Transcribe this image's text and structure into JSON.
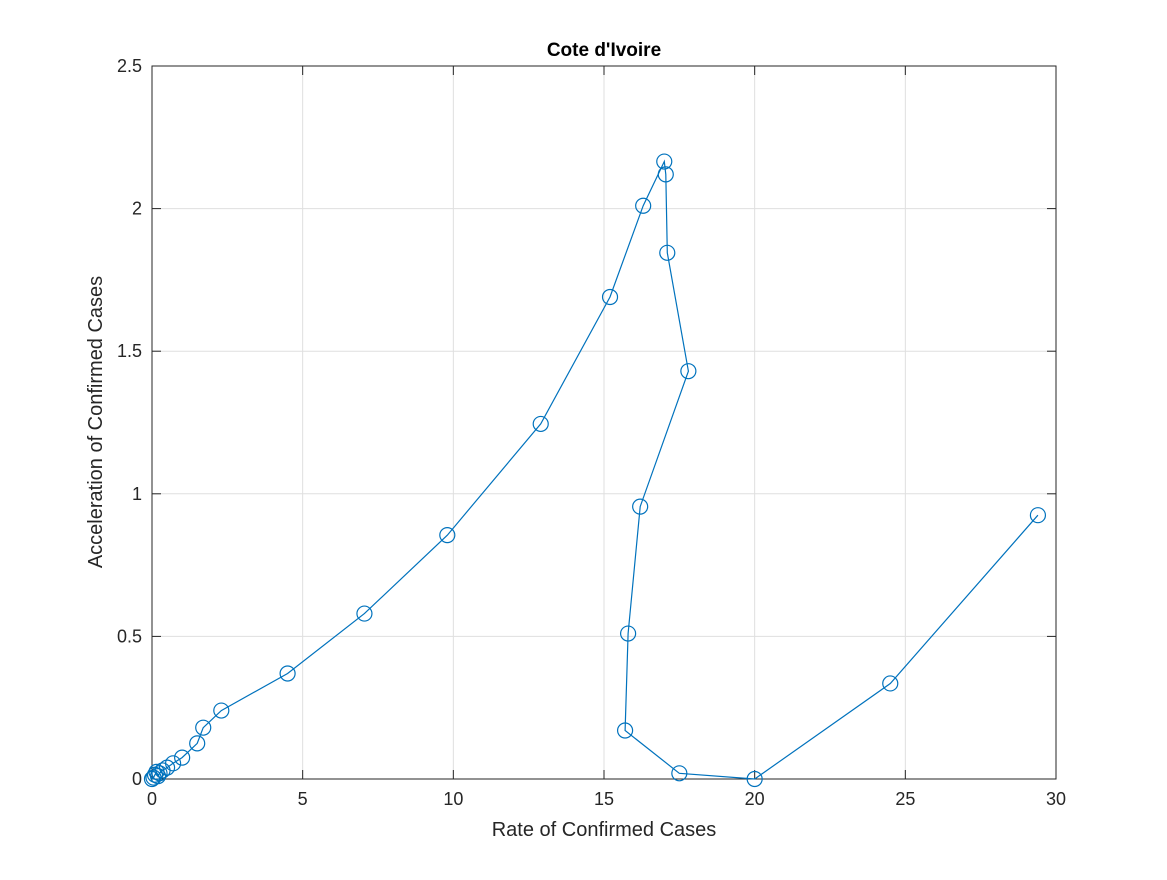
{
  "chart_data": {
    "type": "line",
    "title": "Cote d'Ivoire",
    "xlabel": "Rate of Confirmed Cases",
    "ylabel": "Acceleration of Confirmed Cases",
    "xlim": [
      0,
      30
    ],
    "ylim": [
      0,
      2.5
    ],
    "xticks": [
      0,
      5,
      10,
      15,
      20,
      25,
      30
    ],
    "yticks": [
      0,
      0.5,
      1,
      1.5,
      2,
      2.5
    ],
    "xtick_labels": [
      "0",
      "5",
      "10",
      "15",
      "20",
      "25",
      "30"
    ],
    "ytick_labels": [
      "0",
      "0.5",
      "1",
      "1.5",
      "2",
      "2.5"
    ],
    "grid": true,
    "marker": "circle",
    "color": "#0072BD",
    "series": [
      {
        "x": [
          0.0,
          0.05,
          0.1,
          0.15,
          0.2,
          0.25,
          0.35,
          0.5,
          0.7,
          1.0,
          1.5,
          1.7,
          2.3,
          4.5,
          7.05,
          9.8,
          12.9,
          15.2,
          16.3,
          17.0,
          17.05,
          17.1,
          17.8,
          16.2,
          15.8,
          15.7,
          17.5,
          20.0,
          24.5,
          29.4
        ],
        "y": [
          0.0,
          0.005,
          0.015,
          0.025,
          0.01,
          0.02,
          0.03,
          0.04,
          0.055,
          0.075,
          0.125,
          0.18,
          0.24,
          0.37,
          0.58,
          0.855,
          1.245,
          1.69,
          2.01,
          2.165,
          2.12,
          1.845,
          1.43,
          0.955,
          0.51,
          0.17,
          0.02,
          0.0,
          0.335,
          0.925
        ]
      }
    ]
  }
}
